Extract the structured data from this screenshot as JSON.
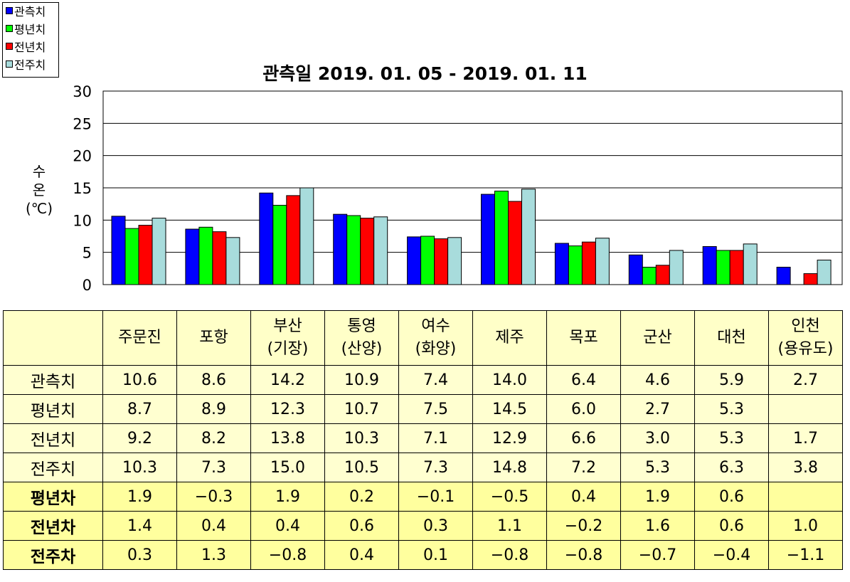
{
  "chart_data": {
    "type": "bar",
    "title": "관측일 2019. 01. 05 - 2019. 01. 11",
    "ylabel": "수\n온\n(℃)",
    "xlabel": "",
    "ylim": [
      0,
      30
    ],
    "yticks": [
      0,
      5,
      10,
      15,
      20,
      25,
      30
    ],
    "grid": true,
    "legend_position": "top-left",
    "categories": [
      "주문진",
      "포항",
      "부산\n(기장)",
      "통영\n(산양)",
      "여수\n(화양)",
      "제주",
      "목포",
      "군산",
      "대천",
      "인천\n(용유도)"
    ],
    "series": [
      {
        "name": "관측치",
        "color": "#0000ff",
        "values": [
          10.6,
          8.6,
          14.2,
          10.9,
          7.4,
          14.0,
          6.4,
          4.6,
          5.9,
          2.7
        ]
      },
      {
        "name": "평년치",
        "color": "#00ff00",
        "values": [
          8.7,
          8.9,
          12.3,
          10.7,
          7.5,
          14.5,
          6.0,
          2.7,
          5.3,
          null
        ]
      },
      {
        "name": "전년치",
        "color": "#ff0000",
        "values": [
          9.2,
          8.2,
          13.8,
          10.3,
          7.1,
          12.9,
          6.6,
          3.0,
          5.3,
          1.7
        ]
      },
      {
        "name": "전주치",
        "color": "#a8dcdc",
        "values": [
          10.3,
          7.3,
          15.0,
          10.5,
          7.3,
          14.8,
          7.2,
          5.3,
          6.3,
          3.8
        ]
      }
    ]
  },
  "table": {
    "corner": "",
    "rows": [
      {
        "label": "관측치",
        "kind": "row",
        "values": [
          "10.6",
          "8.6",
          "14.2",
          "10.9",
          "7.4",
          "14.0",
          "6.4",
          "4.6",
          "5.9",
          "2.7"
        ]
      },
      {
        "label": "평년치",
        "kind": "row",
        "values": [
          "8.7",
          "8.9",
          "12.3",
          "10.7",
          "7.5",
          "14.5",
          "6.0",
          "2.7",
          "5.3",
          ""
        ]
      },
      {
        "label": "전년치",
        "kind": "row",
        "values": [
          "9.2",
          "8.2",
          "13.8",
          "10.3",
          "7.1",
          "12.9",
          "6.6",
          "3.0",
          "5.3",
          "1.7"
        ]
      },
      {
        "label": "전주치",
        "kind": "row",
        "values": [
          "10.3",
          "7.3",
          "15.0",
          "10.5",
          "7.3",
          "14.8",
          "7.2",
          "5.3",
          "6.3",
          "3.8"
        ]
      },
      {
        "label": "평년차",
        "kind": "diff",
        "values": [
          "1.9",
          "−0.3",
          "1.9",
          "0.2",
          "−0.1",
          "−0.5",
          "0.4",
          "1.9",
          "0.6",
          ""
        ]
      },
      {
        "label": "전년차",
        "kind": "diff",
        "values": [
          "1.4",
          "0.4",
          "0.4",
          "0.6",
          "0.3",
          "1.1",
          "−0.2",
          "1.6",
          "0.6",
          "1.0"
        ]
      },
      {
        "label": "전주차",
        "kind": "diff",
        "values": [
          "0.3",
          "1.3",
          "−0.8",
          "0.4",
          "0.1",
          "−0.8",
          "−0.8",
          "−0.7",
          "−0.4",
          "−1.1"
        ]
      }
    ]
  }
}
